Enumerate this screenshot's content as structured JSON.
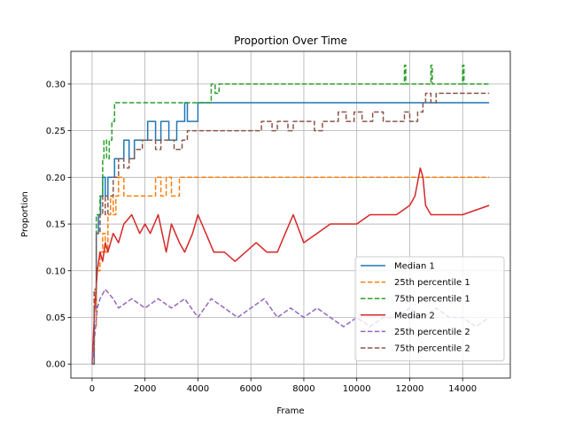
{
  "chart_data": {
    "type": "line",
    "title": "Proportion Over Time",
    "xlabel": "Frame",
    "ylabel": "Proportion",
    "xlim": [
      -800,
      15800
    ],
    "ylim": [
      -0.015,
      0.335
    ],
    "xticks": [
      0,
      2000,
      4000,
      6000,
      8000,
      10000,
      12000,
      14000
    ],
    "xtick_labels": [
      "0",
      "2000",
      "4000",
      "6000",
      "8000",
      "10000",
      "12000",
      "14000"
    ],
    "yticks": [
      0.0,
      0.05,
      0.1,
      0.15,
      0.2,
      0.25,
      0.3
    ],
    "ytick_labels": [
      "0.00",
      "0.05",
      "0.10",
      "0.15",
      "0.20",
      "0.25",
      "0.30"
    ],
    "grid": true,
    "legend_position": "lower-right",
    "series": [
      {
        "name": "Median 1",
        "color": "#1f77b4",
        "dash": "solid",
        "step": true,
        "x": [
          0,
          80,
          160,
          240,
          320,
          400,
          500,
          600,
          700,
          850,
          1000,
          1200,
          1400,
          1600,
          1900,
          2100,
          2400,
          2600,
          2900,
          3200,
          3500,
          3600,
          3800,
          4000,
          15000
        ],
        "y": [
          0.0,
          0.06,
          0.14,
          0.16,
          0.18,
          0.2,
          0.18,
          0.2,
          0.2,
          0.22,
          0.22,
          0.24,
          0.22,
          0.24,
          0.24,
          0.26,
          0.24,
          0.26,
          0.24,
          0.26,
          0.28,
          0.26,
          0.26,
          0.28,
          0.28
        ]
      },
      {
        "name": "25th percentile 1",
        "color": "#ff7f0e",
        "dash": "dashed",
        "step": true,
        "x": [
          0,
          80,
          160,
          300,
          400,
          500,
          600,
          700,
          800,
          900,
          1000,
          1200,
          1300,
          2000,
          2400,
          2600,
          2800,
          3000,
          3300,
          3500,
          15000
        ],
        "y": [
          0.0,
          0.04,
          0.1,
          0.12,
          0.14,
          0.12,
          0.16,
          0.18,
          0.16,
          0.18,
          0.2,
          0.18,
          0.18,
          0.18,
          0.2,
          0.18,
          0.2,
          0.18,
          0.2,
          0.2,
          0.2
        ]
      },
      {
        "name": "75th percentile 1",
        "color": "#2ca02c",
        "dash": "dashed",
        "step": true,
        "x": [
          0,
          80,
          160,
          300,
          400,
          450,
          550,
          650,
          750,
          850,
          1000,
          3800,
          4500,
          4650,
          4800,
          5000,
          11700,
          11800,
          11850,
          12750,
          12800,
          12850,
          13950,
          14000,
          14050,
          15000
        ],
        "y": [
          0.0,
          0.08,
          0.16,
          0.18,
          0.22,
          0.24,
          0.22,
          0.24,
          0.26,
          0.28,
          0.28,
          0.28,
          0.3,
          0.29,
          0.3,
          0.3,
          0.3,
          0.32,
          0.3,
          0.3,
          0.32,
          0.3,
          0.3,
          0.32,
          0.3,
          0.3
        ]
      },
      {
        "name": "Median 2",
        "color": "#d62728",
        "dash": "solid",
        "step": false,
        "x": [
          0,
          100,
          200,
          300,
          400,
          500,
          600,
          800,
          1000,
          1200,
          1500,
          1800,
          2000,
          2200,
          2500,
          2800,
          3000,
          3300,
          3500,
          3800,
          4000,
          4300,
          4600,
          5000,
          5400,
          5800,
          6200,
          6600,
          7000,
          7300,
          7600,
          8000,
          8500,
          9000,
          9500,
          10000,
          10500,
          11000,
          11500,
          12000,
          12200,
          12400,
          12500,
          12600,
          12800,
          13000,
          14000,
          15000
        ],
        "y": [
          0.0,
          0.06,
          0.1,
          0.12,
          0.11,
          0.13,
          0.12,
          0.14,
          0.13,
          0.15,
          0.16,
          0.14,
          0.15,
          0.14,
          0.16,
          0.12,
          0.15,
          0.13,
          0.12,
          0.14,
          0.16,
          0.14,
          0.12,
          0.12,
          0.11,
          0.12,
          0.13,
          0.12,
          0.12,
          0.14,
          0.16,
          0.13,
          0.14,
          0.15,
          0.15,
          0.15,
          0.16,
          0.16,
          0.16,
          0.17,
          0.18,
          0.21,
          0.2,
          0.17,
          0.16,
          0.16,
          0.16,
          0.17
        ]
      },
      {
        "name": "25th percentile 2",
        "color": "#9467bd",
        "dash": "dashed",
        "step": false,
        "x": [
          0,
          100,
          200,
          300,
          500,
          800,
          1000,
          1500,
          2000,
          2500,
          3000,
          3500,
          4000,
          4500,
          5000,
          5500,
          6000,
          6500,
          7000,
          7500,
          8000,
          8500,
          9000,
          9500,
          10000,
          10500,
          11000,
          11500,
          12000,
          12500,
          13000,
          13500,
          14000,
          14500,
          15000
        ],
        "y": [
          0.0,
          0.03,
          0.06,
          0.07,
          0.08,
          0.07,
          0.06,
          0.07,
          0.06,
          0.07,
          0.06,
          0.07,
          0.05,
          0.07,
          0.06,
          0.05,
          0.06,
          0.07,
          0.05,
          0.06,
          0.05,
          0.06,
          0.05,
          0.04,
          0.05,
          0.04,
          0.05,
          0.05,
          0.06,
          0.05,
          0.06,
          0.05,
          0.05,
          0.04,
          0.05
        ]
      },
      {
        "name": "75th percentile 2",
        "color": "#8c564b",
        "dash": "dashed",
        "step": true,
        "x": [
          0,
          80,
          160,
          300,
          400,
          500,
          600,
          800,
          1000,
          1200,
          1400,
          1600,
          1900,
          2400,
          2600,
          3100,
          3400,
          3600,
          4000,
          6000,
          6400,
          6800,
          7000,
          7400,
          7600,
          8000,
          8400,
          8700,
          9000,
          9300,
          9600,
          9900,
          10200,
          10600,
          11000,
          11500,
          11800,
          12000,
          12300,
          12500,
          12600,
          12800,
          13000,
          13800,
          15000
        ],
        "y": [
          0.0,
          0.08,
          0.14,
          0.16,
          0.18,
          0.16,
          0.18,
          0.2,
          0.22,
          0.21,
          0.22,
          0.23,
          0.24,
          0.23,
          0.24,
          0.23,
          0.24,
          0.25,
          0.25,
          0.25,
          0.26,
          0.25,
          0.26,
          0.25,
          0.26,
          0.26,
          0.25,
          0.26,
          0.26,
          0.27,
          0.26,
          0.27,
          0.26,
          0.27,
          0.26,
          0.26,
          0.27,
          0.26,
          0.27,
          0.28,
          0.29,
          0.28,
          0.29,
          0.29,
          0.29
        ]
      }
    ]
  }
}
